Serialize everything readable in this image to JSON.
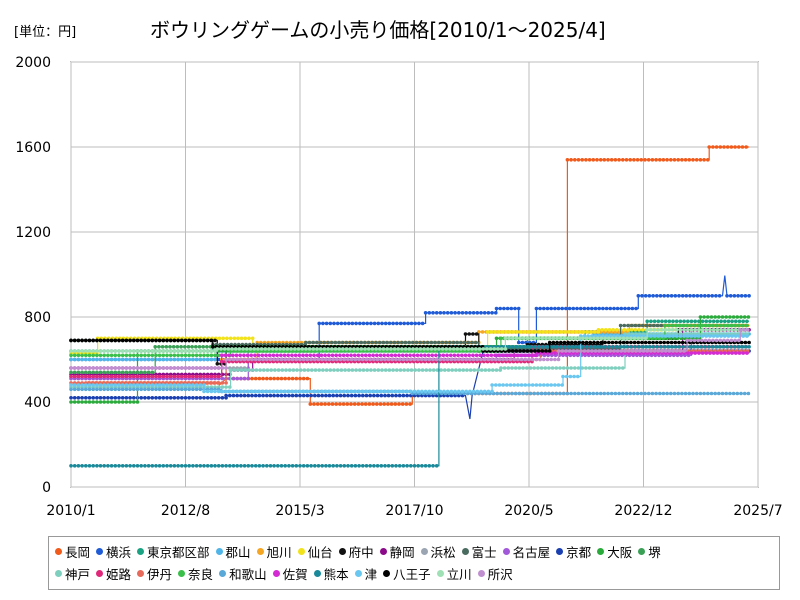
{
  "header": {
    "unit": "[単位：円]",
    "title": "ボウリングゲームの小売り価格[2010/1～2025/4]"
  },
  "chart_data": {
    "type": "line",
    "title": "ボウリングゲームの小売り価格[2010/1～2025/4]",
    "unit": "[単位：円]",
    "ylim": [
      0,
      2000
    ],
    "yticks": [
      0,
      400,
      800,
      1200,
      1600,
      2000
    ],
    "xlim": [
      2010.0,
      2025.5
    ],
    "xticks": [
      {
        "label": "2010/1",
        "v": 2010.0
      },
      {
        "label": "2012/8",
        "v": 2012.5833
      },
      {
        "label": "2015/3",
        "v": 2015.1667
      },
      {
        "label": "2017/10",
        "v": 2017.75
      },
      {
        "label": "2020/5",
        "v": 2020.3333
      },
      {
        "label": "2022/12",
        "v": 2022.9167
      },
      {
        "label": "2025/7",
        "v": 2025.5
      }
    ],
    "grid": true,
    "legend_position": "bottom",
    "series": [
      {
        "name": "長岡",
        "color": "#f05a1a",
        "points": [
          [
            2010.0,
            480
          ],
          [
            2010.4,
            490
          ],
          [
            2013.35,
            490
          ],
          [
            2013.35,
            480
          ],
          [
            2013.5,
            510
          ],
          [
            2015.4,
            510
          ],
          [
            2015.4,
            390
          ],
          [
            2017.7,
            390
          ],
          [
            2017.7,
            440
          ],
          [
            2021.2,
            440
          ],
          [
            2021.2,
            1540
          ],
          [
            2024.4,
            1540
          ],
          [
            2024.4,
            1600
          ],
          [
            2025.3,
            1600
          ]
        ]
      },
      {
        "name": "横浜",
        "color": "#1f5bd6",
        "points": [
          [
            2010.0,
            600
          ],
          [
            2015.6,
            600
          ],
          [
            2015.6,
            770
          ],
          [
            2018.0,
            770
          ],
          [
            2018.0,
            820
          ],
          [
            2019.6,
            820
          ],
          [
            2019.6,
            840
          ],
          [
            2020.1,
            840
          ],
          [
            2020.1,
            680
          ],
          [
            2020.5,
            680
          ],
          [
            2020.5,
            840
          ],
          [
            2022.8,
            840
          ],
          [
            2022.8,
            900
          ],
          [
            2024.7,
            900
          ],
          [
            2024.75,
            995
          ],
          [
            2024.8,
            900
          ],
          [
            2025.3,
            900
          ]
        ]
      },
      {
        "name": "東京都区部",
        "color": "#1aa283",
        "points": [
          [
            2010.0,
            640
          ],
          [
            2013.2,
            640
          ],
          [
            2013.2,
            660
          ],
          [
            2020.3,
            660
          ],
          [
            2020.3,
            700
          ],
          [
            2021.6,
            700
          ],
          [
            2021.6,
            730
          ],
          [
            2023.0,
            730
          ],
          [
            2023.0,
            780
          ],
          [
            2025.3,
            780
          ]
        ]
      },
      {
        "name": "郡山",
        "color": "#4fb5e8",
        "points": [
          [
            2010.0,
            600
          ],
          [
            2013.3,
            600
          ],
          [
            2013.3,
            640
          ],
          [
            2021.8,
            640
          ],
          [
            2021.8,
            720
          ],
          [
            2025.3,
            720
          ]
        ]
      },
      {
        "name": "旭川",
        "color": "#f5a623",
        "points": [
          [
            2010.0,
            520
          ],
          [
            2013.4,
            520
          ],
          [
            2013.4,
            600
          ],
          [
            2014.2,
            600
          ],
          [
            2014.2,
            680
          ],
          [
            2019.2,
            680
          ],
          [
            2019.2,
            730
          ],
          [
            2022.6,
            730
          ],
          [
            2022.6,
            760
          ],
          [
            2025.3,
            760
          ]
        ]
      },
      {
        "name": "仙台",
        "color": "#f2e21a",
        "points": [
          [
            2010.0,
            630
          ],
          [
            2010.6,
            630
          ],
          [
            2010.6,
            700
          ],
          [
            2014.1,
            700
          ],
          [
            2014.1,
            660
          ],
          [
            2019.4,
            660
          ],
          [
            2019.4,
            730
          ],
          [
            2021.9,
            730
          ],
          [
            2021.9,
            740
          ],
          [
            2025.3,
            740
          ]
        ]
      },
      {
        "name": "府中",
        "color": "#111111",
        "points": [
          [
            2010.0,
            690
          ],
          [
            2013.3,
            690
          ],
          [
            2013.3,
            580
          ],
          [
            2013.5,
            580
          ],
          [
            2013.5,
            660
          ],
          [
            2018.9,
            660
          ],
          [
            2018.9,
            720
          ],
          [
            2019.2,
            720
          ],
          [
            2019.2,
            640
          ],
          [
            2020.3,
            640
          ],
          [
            2020.3,
            670
          ],
          [
            2022.0,
            670
          ],
          [
            2022.0,
            700
          ],
          [
            2023.7,
            700
          ],
          [
            2023.7,
            740
          ],
          [
            2025.3,
            740
          ]
        ]
      },
      {
        "name": "静岡",
        "color": "#8a0a8a",
        "points": [
          [
            2010.0,
            530
          ],
          [
            2013.6,
            530
          ],
          [
            2013.6,
            550
          ],
          [
            2014.1,
            550
          ],
          [
            2014.1,
            600
          ],
          [
            2020.0,
            600
          ],
          [
            2020.0,
            640
          ],
          [
            2023.8,
            640
          ],
          [
            2023.8,
            740
          ],
          [
            2025.3,
            740
          ]
        ]
      },
      {
        "name": "浜松",
        "color": "#9aa5b1",
        "points": [
          [
            2010.0,
            560
          ],
          [
            2014.0,
            560
          ],
          [
            2014.0,
            640
          ],
          [
            2025.3,
            640
          ]
        ]
      },
      {
        "name": "富士",
        "color": "#4a6b60",
        "points": [
          [
            2010.0,
            690
          ],
          [
            2013.2,
            690
          ],
          [
            2013.2,
            670
          ],
          [
            2015.3,
            670
          ],
          [
            2015.3,
            680
          ],
          [
            2019.2,
            680
          ],
          [
            2019.2,
            650
          ],
          [
            2022.4,
            650
          ],
          [
            2022.4,
            760
          ],
          [
            2025.3,
            760
          ]
        ]
      },
      {
        "name": "名古屋",
        "color": "#a259d9",
        "points": [
          [
            2010.0,
            510
          ],
          [
            2014.0,
            510
          ],
          [
            2014.0,
            600
          ],
          [
            2019.6,
            600
          ],
          [
            2019.6,
            620
          ],
          [
            2024.0,
            620
          ],
          [
            2024.0,
            740
          ],
          [
            2025.3,
            740
          ]
        ]
      },
      {
        "name": "京都",
        "color": "#1a3fb0",
        "points": [
          [
            2010.0,
            420
          ],
          [
            2013.5,
            420
          ],
          [
            2013.5,
            430
          ],
          [
            2018.9,
            430
          ],
          [
            2019.0,
            320
          ],
          [
            2019.05,
            430
          ],
          [
            2019.3,
            640
          ],
          [
            2025.3,
            640
          ]
        ]
      },
      {
        "name": "大阪",
        "color": "#2aaa3a",
        "points": [
          [
            2010.0,
            400
          ],
          [
            2011.5,
            400
          ],
          [
            2011.5,
            640
          ],
          [
            2015.5,
            640
          ],
          [
            2015.5,
            660
          ],
          [
            2019.6,
            660
          ],
          [
            2019.6,
            700
          ],
          [
            2024.2,
            700
          ],
          [
            2024.2,
            800
          ],
          [
            2025.3,
            800
          ]
        ]
      },
      {
        "name": "堺",
        "color": "#3aa055",
        "points": [
          [
            2010.0,
            540
          ],
          [
            2011.9,
            540
          ],
          [
            2011.9,
            660
          ],
          [
            2025.3,
            660
          ]
        ]
      },
      {
        "name": "神戸",
        "color": "#7fcfbf",
        "points": [
          [
            2010.0,
            470
          ],
          [
            2013.6,
            470
          ],
          [
            2013.6,
            550
          ],
          [
            2019.7,
            550
          ],
          [
            2019.7,
            560
          ],
          [
            2022.5,
            560
          ],
          [
            2022.5,
            720
          ],
          [
            2025.3,
            720
          ]
        ]
      },
      {
        "name": "姫路",
        "color": "#e0287a",
        "points": [
          [
            2010.0,
            520
          ],
          [
            2013.4,
            520
          ],
          [
            2013.4,
            590
          ],
          [
            2020.4,
            590
          ],
          [
            2020.4,
            660
          ],
          [
            2025.3,
            660
          ]
        ]
      },
      {
        "name": "伊丹",
        "color": "#e86a5a",
        "points": [
          [
            2010.0,
            490
          ],
          [
            2013.5,
            490
          ],
          [
            2013.5,
            600
          ],
          [
            2020.6,
            600
          ],
          [
            2020.6,
            640
          ],
          [
            2025.3,
            640
          ]
        ]
      },
      {
        "name": "奈良",
        "color": "#3abf4a",
        "points": [
          [
            2010.0,
            620
          ],
          [
            2013.6,
            620
          ],
          [
            2013.6,
            640
          ],
          [
            2019.7,
            640
          ],
          [
            2019.7,
            700
          ],
          [
            2023.4,
            700
          ],
          [
            2023.4,
            760
          ],
          [
            2025.3,
            760
          ]
        ]
      },
      {
        "name": "和歌山",
        "color": "#5aa8d8",
        "points": [
          [
            2010.0,
            460
          ],
          [
            2013.4,
            460
          ],
          [
            2013.4,
            450
          ],
          [
            2017.7,
            450
          ],
          [
            2017.7,
            440
          ],
          [
            2025.3,
            440
          ]
        ]
      },
      {
        "name": "佐賀",
        "color": "#d42ad4",
        "points": [
          [
            2010.0,
            560
          ],
          [
            2013.4,
            560
          ],
          [
            2013.4,
            620
          ],
          [
            2020.5,
            620
          ],
          [
            2020.5,
            630
          ],
          [
            2025.3,
            630
          ]
        ]
      },
      {
        "name": "熊本",
        "color": "#1a8a9a",
        "points": [
          [
            2010.0,
            100
          ],
          [
            2018.3,
            100
          ],
          [
            2018.3,
            660
          ],
          [
            2025.3,
            660
          ]
        ]
      },
      {
        "name": "津",
        "color": "#6ac7ef",
        "points": [
          [
            2010.0,
            480
          ],
          [
            2013.0,
            480
          ],
          [
            2013.0,
            450
          ],
          [
            2019.5,
            450
          ],
          [
            2019.5,
            480
          ],
          [
            2021.1,
            480
          ],
          [
            2021.1,
            520
          ],
          [
            2021.5,
            520
          ],
          [
            2021.5,
            710
          ],
          [
            2025.3,
            710
          ]
        ]
      },
      {
        "name": "八王子",
        "color": "#000000",
        "points": [
          [
            2010.0,
            690
          ],
          [
            2013.2,
            690
          ],
          [
            2013.2,
            660
          ],
          [
            2019.3,
            660
          ],
          [
            2019.3,
            640
          ],
          [
            2020.8,
            640
          ],
          [
            2020.8,
            680
          ],
          [
            2025.3,
            680
          ]
        ]
      },
      {
        "name": "立川",
        "color": "#9fe0b5",
        "points": [
          [
            2010.0,
            640
          ],
          [
            2013.3,
            640
          ],
          [
            2013.3,
            650
          ],
          [
            2019.8,
            650
          ],
          [
            2019.8,
            700
          ],
          [
            2023.0,
            700
          ],
          [
            2023.0,
            740
          ],
          [
            2025.3,
            740
          ]
        ]
      },
      {
        "name": "所沢",
        "color": "#c08fd0",
        "points": [
          [
            2010.0,
            560
          ],
          [
            2013.5,
            560
          ],
          [
            2013.5,
            600
          ],
          [
            2021.0,
            600
          ],
          [
            2021.0,
            640
          ],
          [
            2023.9,
            640
          ],
          [
            2023.9,
            690
          ],
          [
            2025.1,
            690
          ],
          [
            2025.1,
            740
          ],
          [
            2025.3,
            740
          ]
        ]
      }
    ]
  }
}
